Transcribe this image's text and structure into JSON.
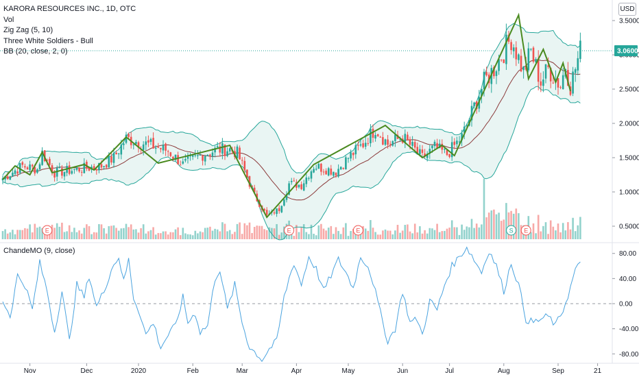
{
  "header": {
    "title": "KARORA RESOURCES INC., 1D, OTC",
    "indicators": [
      "Vol",
      "Zig Zag (5, 10)",
      "Three White Soldiers - Bull",
      "BB (20, close, 2, 0)"
    ],
    "currency_button": "USD"
  },
  "oscillator": {
    "title": "ChandeMO (9, close)"
  },
  "colors": {
    "up": "#26a69a",
    "down": "#ef5350",
    "zigzag": "#4a8a1f",
    "bb_band": "#26a69a",
    "bb_basis": "#8b3a3a",
    "bb_fill": "#e9f5f3",
    "cmo": "#4aa3df",
    "price_tag": "#26a69a",
    "earnings": "#ef5350",
    "split": "#26a69a"
  },
  "chart_data": [
    {
      "type": "candlestick",
      "title": "KARORA RESOURCES INC., 1D, OTC",
      "ylim": [
        0.3,
        3.75
      ],
      "y_ticks": [
        "3.5000",
        "3.0000",
        "2.5000",
        "2.0000",
        "1.5000",
        "1.0000",
        "0.5000"
      ],
      "y_tick_values": [
        3.5,
        3.0,
        2.5,
        2.0,
        1.5,
        1.0,
        0.5
      ],
      "last_price": "3.0600",
      "last_price_value": 3.06,
      "x_ticks": [
        "Nov",
        "Dec",
        "2020",
        "Feb",
        "Mar",
        "Apr",
        "May",
        "Jun",
        "Jul",
        "Aug",
        "Sep",
        "21"
      ],
      "x_tick_days": [
        11,
        34,
        55,
        77,
        97,
        119,
        140,
        162,
        181,
        203,
        225,
        241
      ],
      "n_days": 235,
      "anchors": [
        [
          0,
          1.2
        ],
        [
          8,
          1.38
        ],
        [
          14,
          1.33
        ],
        [
          16,
          1.57
        ],
        [
          21,
          1.28
        ],
        [
          34,
          1.35
        ],
        [
          40,
          1.38
        ],
        [
          45,
          1.5
        ],
        [
          50,
          1.78
        ],
        [
          60,
          1.68
        ],
        [
          67,
          1.6
        ],
        [
          73,
          1.4
        ],
        [
          80,
          1.53
        ],
        [
          87,
          1.62
        ],
        [
          92,
          1.62
        ],
        [
          95,
          1.57
        ],
        [
          102,
          0.95
        ],
        [
          107,
          0.65
        ],
        [
          112,
          0.75
        ],
        [
          116,
          1.12
        ],
        [
          121,
          1.1
        ],
        [
          126,
          1.38
        ],
        [
          135,
          1.3
        ],
        [
          140,
          1.5
        ],
        [
          146,
          1.7
        ],
        [
          151,
          1.93
        ],
        [
          156,
          1.7
        ],
        [
          162,
          1.8
        ],
        [
          170,
          1.5
        ],
        [
          175,
          1.65
        ],
        [
          180,
          1.55
        ],
        [
          186,
          1.8
        ],
        [
          195,
          2.6
        ],
        [
          199,
          2.8
        ],
        [
          206,
          3.25
        ],
        [
          211,
          2.75
        ],
        [
          214,
          3.05
        ],
        [
          218,
          2.6
        ],
        [
          221,
          2.8
        ],
        [
          226,
          2.55
        ],
        [
          228,
          2.85
        ],
        [
          230,
          2.55
        ],
        [
          234,
          3.06
        ]
      ],
      "zigzag": [
        [
          0,
          1.18
        ],
        [
          5,
          1.38
        ],
        [
          11,
          1.25
        ],
        [
          16,
          1.58
        ],
        [
          20,
          1.28
        ],
        [
          33,
          1.4
        ],
        [
          37,
          1.32
        ],
        [
          50,
          1.8
        ],
        [
          63,
          1.42
        ],
        [
          92,
          1.68
        ],
        [
          107,
          0.63
        ],
        [
          126,
          1.4
        ],
        [
          155,
          1.97
        ],
        [
          170,
          1.5
        ],
        [
          178,
          1.68
        ],
        [
          183,
          1.53
        ],
        [
          209,
          3.58
        ],
        [
          213,
          2.65
        ],
        [
          219,
          3.08
        ],
        [
          224,
          2.6
        ],
        [
          227,
          2.88
        ],
        [
          230,
          2.47
        ]
      ],
      "earnings_days": [
        18,
        116,
        144,
        212
      ],
      "split_days": [
        206
      ],
      "three_white_soldiers_marker_day": 195
    },
    {
      "type": "line",
      "title": "ChandeMO (9, close)",
      "ylim": [
        -95,
        95
      ],
      "y_ticks": [
        "80.00",
        "40.00",
        "0.00",
        "-40.00",
        "-80.00"
      ],
      "y_tick_values": [
        80,
        40,
        0,
        -40,
        -80
      ],
      "series": [
        {
          "name": "ChandeMO (9, close)",
          "anchors": [
            [
              0,
              5
            ],
            [
              3,
              -20
            ],
            [
              6,
              45
            ],
            [
              9,
              30
            ],
            [
              12,
              -10
            ],
            [
              15,
              65
            ],
            [
              18,
              20
            ],
            [
              21,
              -45
            ],
            [
              24,
              20
            ],
            [
              27,
              -60
            ],
            [
              30,
              30
            ],
            [
              33,
              10
            ],
            [
              35,
              45
            ],
            [
              38,
              -5
            ],
            [
              41,
              20
            ],
            [
              44,
              55
            ],
            [
              47,
              75
            ],
            [
              49,
              35
            ],
            [
              51,
              70
            ],
            [
              53,
              10
            ],
            [
              56,
              -20
            ],
            [
              58,
              -50
            ],
            [
              61,
              -30
            ],
            [
              64,
              -70
            ],
            [
              67,
              -50
            ],
            [
              70,
              -35
            ],
            [
              73,
              10
            ],
            [
              75,
              -30
            ],
            [
              78,
              -15
            ],
            [
              80,
              -45
            ],
            [
              83,
              -35
            ],
            [
              86,
              40
            ],
            [
              88,
              55
            ],
            [
              91,
              -10
            ],
            [
              94,
              30
            ],
            [
              97,
              -30
            ],
            [
              100,
              -70
            ],
            [
              103,
              -80
            ],
            [
              105,
              -90
            ],
            [
              108,
              -72
            ],
            [
              111,
              -60
            ],
            [
              114,
              10
            ],
            [
              116,
              40
            ],
            [
              118,
              65
            ],
            [
              121,
              30
            ],
            [
              124,
              75
            ],
            [
              127,
              55
            ],
            [
              130,
              20
            ],
            [
              133,
              45
            ],
            [
              136,
              70
            ],
            [
              139,
              50
            ],
            [
              142,
              25
            ],
            [
              145,
              75
            ],
            [
              148,
              60
            ],
            [
              150,
              35
            ],
            [
              153,
              -15
            ],
            [
              156,
              -60
            ],
            [
              159,
              -40
            ],
            [
              162,
              20
            ],
            [
              165,
              -30
            ],
            [
              168,
              -25
            ],
            [
              170,
              -50
            ],
            [
              173,
              5
            ],
            [
              176,
              -10
            ],
            [
              179,
              30
            ],
            [
              182,
              60
            ],
            [
              185,
              75
            ],
            [
              188,
              90
            ],
            [
              191,
              70
            ],
            [
              194,
              50
            ],
            [
              197,
              85
            ],
            [
              200,
              60
            ],
            [
              203,
              20
            ],
            [
              206,
              65
            ],
            [
              209,
              30
            ],
            [
              212,
              -25
            ],
            [
              215,
              -30
            ],
            [
              218,
              -25
            ],
            [
              221,
              -20
            ],
            [
              224,
              -35
            ],
            [
              227,
              -10
            ],
            [
              230,
              25
            ],
            [
              232,
              55
            ],
            [
              234,
              62
            ]
          ]
        }
      ]
    }
  ]
}
